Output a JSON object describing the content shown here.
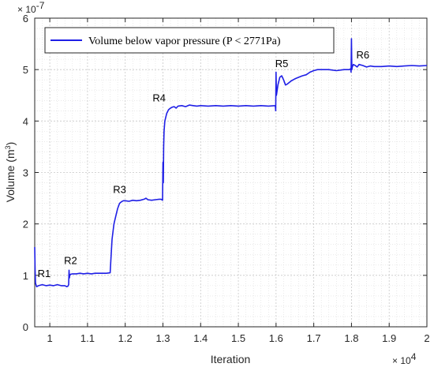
{
  "chart_data": {
    "type": "line",
    "xlabel": "Iteration",
    "ylabel": "Volume (m",
    "ylabel_sup": "3",
    "ylabel_close": ")",
    "x_exponent_base": "× 10",
    "x_exponent_power": "4",
    "y_exponent_base": "× 10",
    "y_exponent_power": "-7",
    "xlim": [
      9600,
      20000
    ],
    "ylim": [
      0,
      6
    ],
    "xticks": [
      10000,
      11000,
      12000,
      13000,
      14000,
      15000,
      16000,
      17000,
      18000,
      19000,
      20000
    ],
    "xtick_labels": [
      "1",
      "1.1",
      "1.2",
      "1.3",
      "1.4",
      "1.5",
      "1.6",
      "1.7",
      "1.8",
      "1.9",
      "2"
    ],
    "yticks": [
      0,
      1,
      2,
      3,
      4,
      5,
      6
    ],
    "ytick_labels": [
      "0",
      "1",
      "2",
      "3",
      "4",
      "5",
      "6"
    ],
    "grid": true,
    "minor_grid": true,
    "legend_position": "top-left",
    "color": "#1f1fe6",
    "series": [
      {
        "name": "Volume below vapor pressure (P < 2771Pa)",
        "x": [
          9600,
          9610,
          9620,
          9650,
          9700,
          9800,
          9900,
          10000,
          10100,
          10200,
          10300,
          10400,
          10450,
          10480,
          10500,
          10510,
          10520,
          10530,
          10550,
          10600,
          10700,
          10800,
          10900,
          11000,
          11100,
          11200,
          11500,
          11600,
          11620,
          11650,
          11700,
          11750,
          11800,
          11850,
          11900,
          11950,
          12000,
          12100,
          12200,
          12300,
          12400,
          12500,
          12550,
          12600,
          12700,
          12800,
          12900,
          12950,
          12990,
          13000,
          13010,
          13020,
          13030,
          13050,
          13100,
          13150,
          13200,
          13250,
          13300,
          13350,
          13400,
          13500,
          13600,
          13700,
          13800,
          13900,
          14000,
          14200,
          14400,
          14600,
          14800,
          15000,
          15200,
          15400,
          15600,
          15800,
          15980,
          15990,
          16000,
          16010,
          16020,
          16050,
          16100,
          16150,
          16200,
          16250,
          16300,
          16400,
          16500,
          16600,
          16700,
          16800,
          16900,
          17000,
          17100,
          17200,
          17400,
          17600,
          17800,
          17950,
          17980,
          17990,
          18000,
          18010,
          18020,
          18050,
          18100,
          18150,
          18200,
          18300,
          18400,
          18500,
          18600,
          18800,
          19000,
          19200,
          19400,
          19600,
          19800,
          20000
        ],
        "y": [
          1.55,
          1.1,
          0.85,
          0.78,
          0.8,
          0.82,
          0.8,
          0.81,
          0.8,
          0.82,
          0.8,
          0.8,
          0.78,
          0.79,
          0.82,
          1.1,
          0.95,
          1.0,
          1.02,
          1.03,
          1.03,
          1.04,
          1.03,
          1.04,
          1.03,
          1.04,
          1.04,
          1.05,
          1.3,
          1.7,
          2.0,
          2.15,
          2.3,
          2.4,
          2.43,
          2.45,
          2.45,
          2.44,
          2.46,
          2.45,
          2.46,
          2.48,
          2.5,
          2.47,
          2.46,
          2.47,
          2.48,
          2.48,
          2.46,
          3.2,
          2.8,
          3.5,
          3.8,
          4.0,
          4.15,
          4.22,
          4.25,
          4.27,
          4.28,
          4.25,
          4.29,
          4.3,
          4.28,
          4.31,
          4.3,
          4.29,
          4.3,
          4.29,
          4.3,
          4.29,
          4.3,
          4.29,
          4.3,
          4.29,
          4.3,
          4.29,
          4.3,
          4.2,
          4.95,
          4.5,
          4.55,
          4.7,
          4.85,
          4.88,
          4.8,
          4.7,
          4.72,
          4.78,
          4.82,
          4.85,
          4.88,
          4.9,
          4.95,
          4.98,
          5.0,
          5.0,
          5.0,
          4.98,
          5.0,
          5.0,
          5.02,
          4.95,
          5.6,
          5.0,
          5.05,
          5.1,
          5.08,
          5.05,
          5.1,
          5.08,
          5.05,
          5.07,
          5.06,
          5.06,
          5.07,
          5.06,
          5.07,
          5.08,
          5.07,
          5.08
        ]
      }
    ],
    "annotations": [
      {
        "label": "R1",
        "x": 9850,
        "y": 0.97
      },
      {
        "label": "R2",
        "x": 10550,
        "y": 1.22
      },
      {
        "label": "R3",
        "x": 11850,
        "y": 2.6
      },
      {
        "label": "R4",
        "x": 12900,
        "y": 4.38
      },
      {
        "label": "R5",
        "x": 16150,
        "y": 5.05
      },
      {
        "label": "R6",
        "x": 18300,
        "y": 5.22
      }
    ]
  }
}
